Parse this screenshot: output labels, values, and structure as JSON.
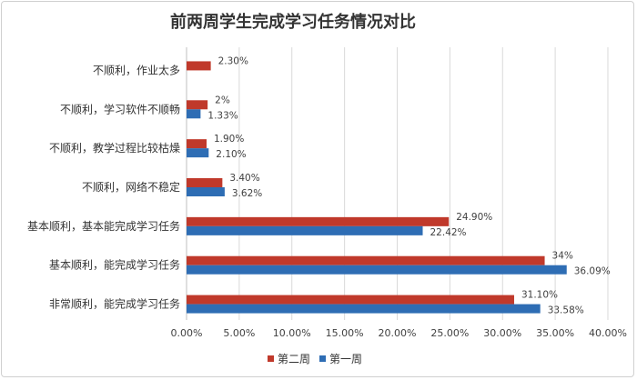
{
  "chart_data": {
    "type": "bar",
    "orientation": "horizontal",
    "title": "前两周学生完成学习任务情况对比",
    "categories": [
      "不顺利，作业太多",
      "不顺利，学习软件不顺畅",
      "不顺利，教学过程比较枯燥",
      "不顺利，网络不稳定",
      "基本顺利，基本能完成学习任务",
      "基本顺利，能完成学习任务",
      "非常顺利，能完成学习任务"
    ],
    "series": [
      {
        "name": "第二周",
        "color": "#c0392b",
        "values": [
          2.3,
          2,
          1.9,
          3.4,
          24.9,
          34,
          31.1
        ],
        "labels": [
          "2.30%",
          "2%",
          "1.90%",
          "3.40%",
          "24.90%",
          "34%",
          "31.10%"
        ]
      },
      {
        "name": "第一周",
        "color": "#2e6db4",
        "values": [
          null,
          1.33,
          2.1,
          3.62,
          22.42,
          36.09,
          33.58
        ],
        "labels": [
          "",
          "1.33%",
          "2.10%",
          "3.62%",
          "22.42%",
          "36.09%",
          "33.58%"
        ]
      }
    ],
    "xlim": [
      0,
      40
    ],
    "xticks": [
      "0.00%",
      "5.00%",
      "10.00%",
      "15.00%",
      "20.00%",
      "25.00%",
      "30.00%",
      "35.00%",
      "40.00%"
    ],
    "grid": true,
    "legend_position": "bottom"
  }
}
